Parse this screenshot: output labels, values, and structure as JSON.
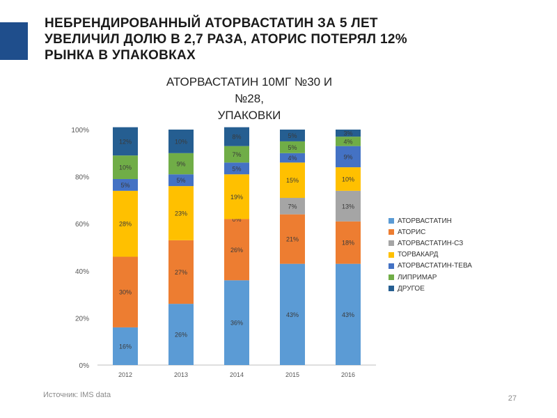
{
  "slide": {
    "title_lines": [
      "НЕБРЕНДИРОВАННЫЙ АТОРВАСТАТИН ЗА 5 ЛЕТ",
      "УВЕЛИЧИЛ ДОЛЮ В 2,7 РАЗА, АТОРИС ПОТЕРЯЛ 12%",
      "РЫНКА В УПАКОВКАХ"
    ],
    "source_label": "Источник: IMS data",
    "page_number": "27",
    "accent_color": "#1f4e8c"
  },
  "chart_data": {
    "type": "bar",
    "stacked": "percent",
    "title_lines": [
      "АТОРВАСТАТИН 10МГ №30 И",
      "№28,",
      "УПАКОВКИ"
    ],
    "categories": [
      "2012",
      "2013",
      "2014",
      "2015",
      "2016"
    ],
    "y_ticks": [
      "0%",
      "20%",
      "40%",
      "60%",
      "80%",
      "100%"
    ],
    "ylim": [
      0,
      100
    ],
    "grid": false,
    "legend_position": "right",
    "series": [
      {
        "name": "АТОРВАСТАТИН",
        "color": "#5b9bd5",
        "values": [
          16,
          26,
          36,
          43,
          43
        ],
        "labels": [
          "16%",
          "26%",
          "36%",
          "43%",
          "43%"
        ]
      },
      {
        "name": "АТОРИС",
        "color": "#ed7d31",
        "values": [
          30,
          27,
          26,
          21,
          18
        ],
        "labels": [
          "30%",
          "27%",
          "26%",
          "21%",
          "18%"
        ]
      },
      {
        "name": "АТОРВАСТАТИН-СЗ",
        "color": "#a5a5a5",
        "values": [
          0,
          0,
          0,
          7,
          13
        ],
        "labels": [
          "",
          "",
          "",
          "7%",
          "13%"
        ]
      },
      {
        "name": "ТОРВАКАРД",
        "color": "#ffc000",
        "values": [
          28,
          23,
          19,
          15,
          10
        ],
        "labels": [
          "28%",
          "23%",
          "19%",
          "15%",
          "10%"
        ]
      },
      {
        "name": "АТОРВАСТАТИН-ТЕВА",
        "color": "#4472c4",
        "values": [
          5,
          5,
          5,
          4,
          9
        ],
        "labels": [
          "5%",
          "5%",
          "5%",
          "4%",
          "9%"
        ]
      },
      {
        "name": "ЛИПРИМАР",
        "color": "#70ad47",
        "values": [
          10,
          9,
          7,
          5,
          4
        ],
        "labels": [
          "10%",
          "9%",
          "7%",
          "5%",
          "4%"
        ]
      },
      {
        "name": "ДРУГОЕ",
        "color": "#255e91",
        "values": [
          12,
          10,
          8,
          5,
          3
        ],
        "labels": [
          "12%",
          "10%",
          "8%",
          "5%",
          "3%"
        ]
      }
    ],
    "extra_labels": [
      {
        "category": "2014",
        "after_series": "АТОРИС",
        "text": "0%"
      }
    ]
  }
}
